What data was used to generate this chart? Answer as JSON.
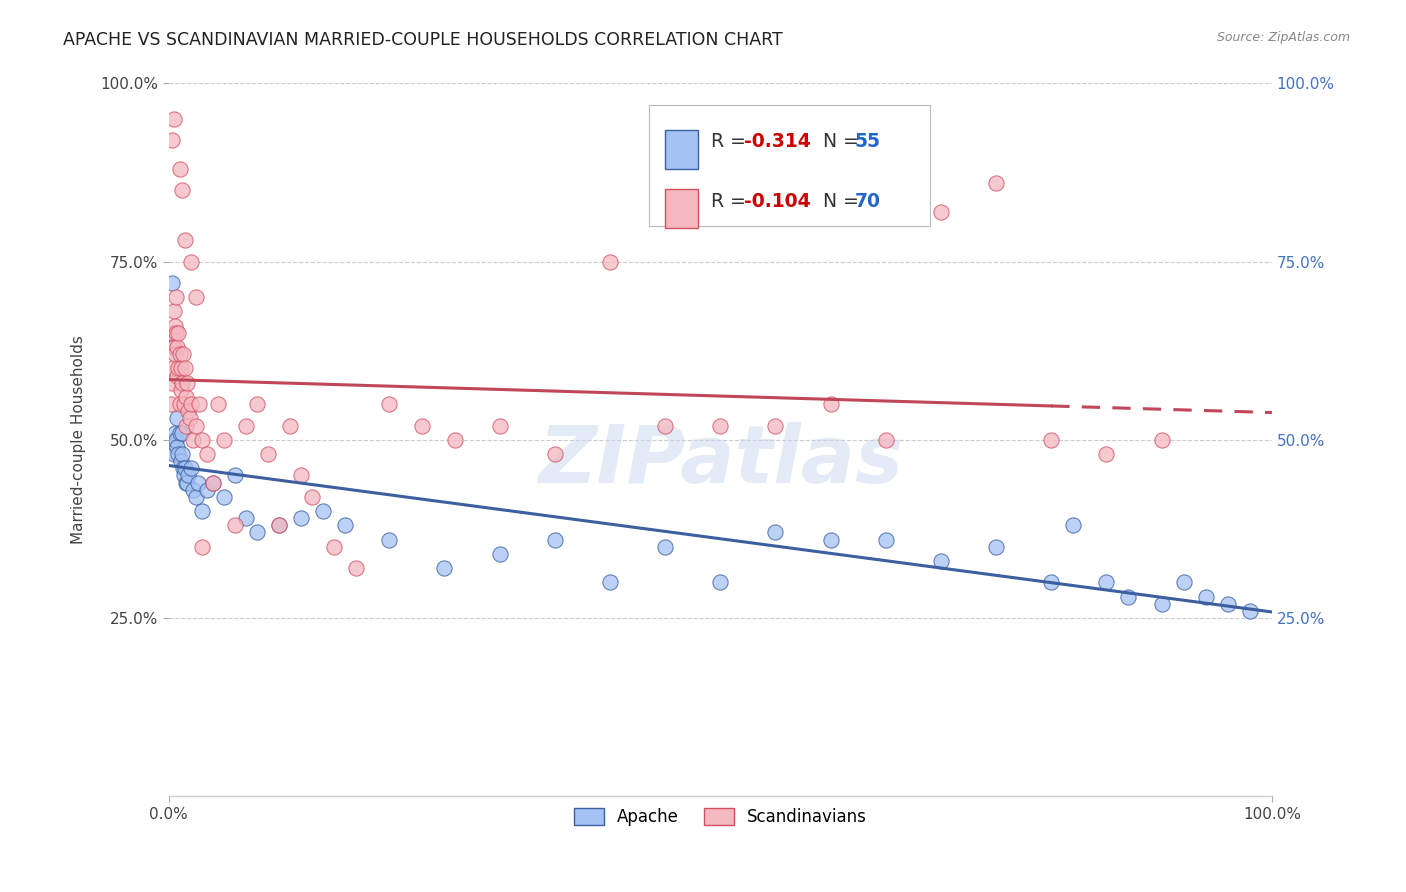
{
  "title": "APACHE VS SCANDINAVIAN MARRIED-COUPLE HOUSEHOLDS CORRELATION CHART",
  "source": "Source: ZipAtlas.com",
  "ylabel": "Married-couple Households",
  "legend_apache": "Apache",
  "legend_scand": "Scandinavians",
  "r_apache": -0.314,
  "n_apache": 55,
  "r_scand": -0.104,
  "n_scand": 70,
  "color_apache": "#a4c2f4",
  "color_scand": "#f4b8c1",
  "trendline_apache": "#3c5fa0",
  "trendline_scand": "#c0465a",
  "watermark": "ZIPatlas",
  "xlim": [
    0.0,
    1.0
  ],
  "ylim": [
    0.0,
    1.0
  ],
  "ytick_labels": [
    "25.0%",
    "50.0%",
    "75.0%",
    "100.0%"
  ],
  "ytick_values": [
    0.25,
    0.5,
    0.75,
    1.0
  ],
  "grid_color": "#cccccc",
  "apache_x": [
    0.003,
    0.004,
    0.005,
    0.005,
    0.006,
    0.007,
    0.008,
    0.008,
    0.009,
    0.01,
    0.011,
    0.012,
    0.012,
    0.013,
    0.014,
    0.015,
    0.016,
    0.017,
    0.018,
    0.02,
    0.022,
    0.025,
    0.027,
    0.03,
    0.035,
    0.04,
    0.05,
    0.06,
    0.07,
    0.08,
    0.1,
    0.12,
    0.14,
    0.16,
    0.2,
    0.25,
    0.3,
    0.35,
    0.4,
    0.45,
    0.5,
    0.55,
    0.6,
    0.65,
    0.7,
    0.75,
    0.8,
    0.82,
    0.85,
    0.87,
    0.9,
    0.92,
    0.94,
    0.96,
    0.98
  ],
  "apache_y": [
    0.72,
    0.63,
    0.48,
    0.5,
    0.51,
    0.5,
    0.49,
    0.53,
    0.48,
    0.51,
    0.47,
    0.51,
    0.48,
    0.46,
    0.45,
    0.46,
    0.44,
    0.44,
    0.45,
    0.46,
    0.43,
    0.42,
    0.44,
    0.4,
    0.43,
    0.44,
    0.42,
    0.45,
    0.39,
    0.37,
    0.38,
    0.39,
    0.4,
    0.38,
    0.36,
    0.32,
    0.34,
    0.36,
    0.3,
    0.35,
    0.3,
    0.37,
    0.36,
    0.36,
    0.33,
    0.35,
    0.3,
    0.38,
    0.3,
    0.28,
    0.27,
    0.3,
    0.28,
    0.27,
    0.26
  ],
  "scand_x": [
    0.002,
    0.003,
    0.004,
    0.004,
    0.005,
    0.005,
    0.006,
    0.006,
    0.007,
    0.007,
    0.008,
    0.008,
    0.009,
    0.009,
    0.01,
    0.01,
    0.011,
    0.011,
    0.012,
    0.013,
    0.014,
    0.015,
    0.016,
    0.016,
    0.017,
    0.018,
    0.019,
    0.02,
    0.022,
    0.025,
    0.028,
    0.03,
    0.035,
    0.04,
    0.045,
    0.05,
    0.06,
    0.07,
    0.08,
    0.09,
    0.1,
    0.11,
    0.12,
    0.13,
    0.15,
    0.17,
    0.2,
    0.23,
    0.26,
    0.3,
    0.35,
    0.4,
    0.45,
    0.5,
    0.55,
    0.6,
    0.65,
    0.7,
    0.75,
    0.8,
    0.85,
    0.9,
    0.003,
    0.005,
    0.01,
    0.012,
    0.015,
    0.02,
    0.025,
    0.03
  ],
  "scand_y": [
    0.55,
    0.58,
    0.65,
    0.6,
    0.68,
    0.63,
    0.66,
    0.62,
    0.7,
    0.65,
    0.63,
    0.59,
    0.65,
    0.6,
    0.62,
    0.55,
    0.6,
    0.57,
    0.58,
    0.62,
    0.55,
    0.6,
    0.56,
    0.52,
    0.58,
    0.54,
    0.53,
    0.55,
    0.5,
    0.52,
    0.55,
    0.5,
    0.48,
    0.44,
    0.55,
    0.5,
    0.38,
    0.52,
    0.55,
    0.48,
    0.38,
    0.52,
    0.45,
    0.42,
    0.35,
    0.32,
    0.55,
    0.52,
    0.5,
    0.52,
    0.48,
    0.75,
    0.52,
    0.52,
    0.52,
    0.55,
    0.5,
    0.82,
    0.86,
    0.5,
    0.48,
    0.5,
    0.92,
    0.95,
    0.88,
    0.85,
    0.78,
    0.75,
    0.7,
    0.35
  ]
}
